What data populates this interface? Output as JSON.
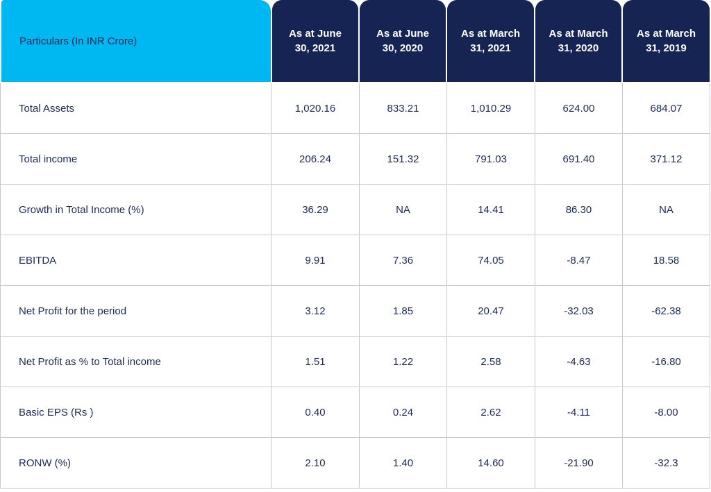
{
  "table": {
    "headers": [
      "Particulars (In INR Crore)",
      "As at June\n30, 2021",
      "As at June\n30, 2020",
      "As at March\n31, 2021",
      "As at March\n31, 2020",
      "As at March\n31, 2019"
    ],
    "rows": [
      [
        "Total Assets",
        "1,020.16",
        "833.21",
        "1,010.29",
        "624.00",
        "684.07"
      ],
      [
        "Total income",
        "206.24",
        "151.32",
        "791.03",
        "691.40",
        "371.12"
      ],
      [
        "Growth in Total Income (%)",
        "36.29",
        "NA",
        "14.41",
        "86.30",
        "NA"
      ],
      [
        "EBITDA",
        "9.91",
        "7.36",
        "74.05",
        "-8.47",
        "18.58"
      ],
      [
        "Net Profit for the period",
        "3.12",
        "1.85",
        "20.47",
        "-32.03",
        "-62.38"
      ],
      [
        "Net Profit as % to Total income",
        "1.51",
        "1.22",
        "2.58",
        "-4.63",
        "-16.80"
      ],
      [
        "Basic EPS (Rs )",
        "0.40",
        "0.24",
        "2.62",
        "-4.11",
        "-8.00"
      ],
      [
        "RONW (%)",
        "2.10",
        "1.40",
        "14.60",
        "-21.90",
        "-32.3"
      ]
    ]
  },
  "colors": {
    "accent": "#00b8f1",
    "header_dark": "#152452",
    "text": "#1b2a55",
    "border": "#c9c9c9"
  }
}
